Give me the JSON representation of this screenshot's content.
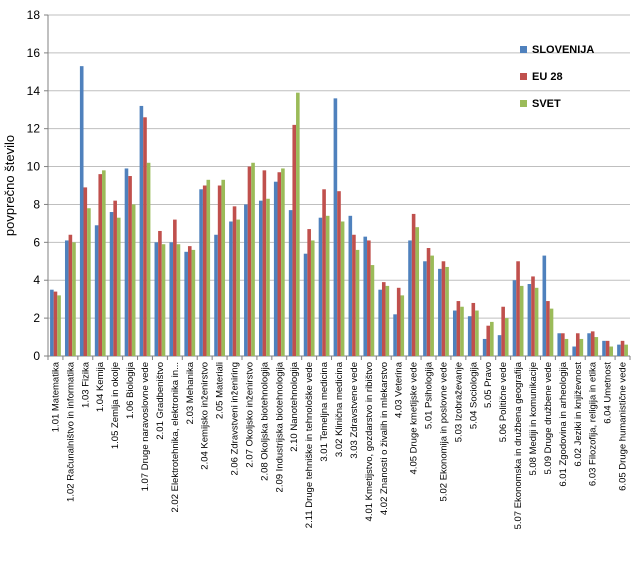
{
  "chart_data": {
    "type": "bar",
    "title": "",
    "xlabel": "",
    "ylabel": "povprečno število",
    "ylim": [
      0,
      18
    ],
    "yticks": [
      0,
      2,
      4,
      6,
      8,
      10,
      12,
      14,
      16,
      18
    ],
    "grid": "horizontal",
    "legend_position": "right",
    "categories": [
      "1.01 Matematika",
      "1.02 Računalništvo in informatika",
      "1.03 Fizika",
      "1.04 Kemija",
      "1.05 Zemlja in okolje",
      "1.06 Biologija",
      "1.07 Druge naravoslovne vede",
      "2.01 Gradbeništvo",
      "2.02 Elektrotehnika, elektronika in...",
      "2.03 Mehanika",
      "2.04 Kemijsko inženirstvo",
      "2.05 Materiali",
      "2.06 Zdravstveni inženiring",
      "2.07 Okoljsko inženirstvo",
      "2.08 Okoljska biotehnologija",
      "2.09 Industrijska biotehnologija",
      "2.10 Nanotehnologija",
      "2.11 Druge tehniške in tehnološke vede",
      "3.01 Temeljna medicina",
      "3.02 Klinična medicina",
      "3.03 Zdravstvene vede",
      "4.01 Kmetijstvo, gozdarstvo in ribištvo",
      "4.02 Znanosti o živalih in mlekarstvo",
      "4.03 Veterina",
      "4.05 Druge kmetijske vede",
      "5.01 Psihologija",
      "5.02 Ekonomija in poslovne vede",
      "5.03 Izobraževanje",
      "5.04 Sociologija",
      "5.05 Pravo",
      "5.06 Politične vede",
      "5.07 Ekonomska in družbena geografija",
      "5.08 Mediji in komunikacije",
      "5.09 Druge družbene vede",
      "6.01 Zgodovina in arheologija",
      "6.02 Jeziki in književnost",
      "6.03 Filozofija, religija in etika",
      "6.04 Umetnost",
      "6.05 Druge humanistične vede"
    ],
    "series": [
      {
        "name": "SLOVENIJA",
        "color": "#4F81BD",
        "values": [
          3.5,
          6.1,
          15.3,
          6.9,
          7.6,
          9.9,
          13.2,
          6.0,
          6.0,
          5.5,
          8.8,
          6.4,
          7.1,
          8.0,
          8.2,
          9.2,
          7.7,
          5.4,
          7.3,
          13.6,
          7.4,
          6.3,
          3.5,
          2.2,
          6.1,
          5.0,
          4.6,
          2.4,
          2.1,
          0.9,
          1.1,
          4.0,
          3.8,
          5.3,
          1.2,
          0.5,
          1.2,
          0.8,
          0.6
        ]
      },
      {
        "name": "EU 28",
        "color": "#C0504D",
        "values": [
          3.4,
          6.4,
          8.9,
          9.6,
          8.2,
          9.5,
          12.6,
          6.6,
          7.2,
          5.8,
          9.0,
          9.0,
          7.9,
          10.0,
          9.8,
          9.7,
          12.2,
          6.7,
          8.8,
          8.7,
          6.4,
          6.1,
          3.9,
          3.6,
          7.5,
          5.7,
          5.0,
          2.9,
          2.8,
          1.6,
          2.6,
          5.0,
          4.2,
          2.9,
          1.2,
          1.2,
          1.3,
          0.8,
          0.8
        ]
      },
      {
        "name": "SVET",
        "color": "#9BBB59",
        "values": [
          3.2,
          6.0,
          7.8,
          9.8,
          7.3,
          8.0,
          10.2,
          5.9,
          5.9,
          5.6,
          9.3,
          9.3,
          7.2,
          10.2,
          8.3,
          9.9,
          13.9,
          6.1,
          7.4,
          7.1,
          5.6,
          4.8,
          3.7,
          3.2,
          6.8,
          5.3,
          4.7,
          2.6,
          2.4,
          1.8,
          2.0,
          3.7,
          3.6,
          2.5,
          0.9,
          0.9,
          1.0,
          0.5,
          0.6
        ]
      }
    ]
  }
}
